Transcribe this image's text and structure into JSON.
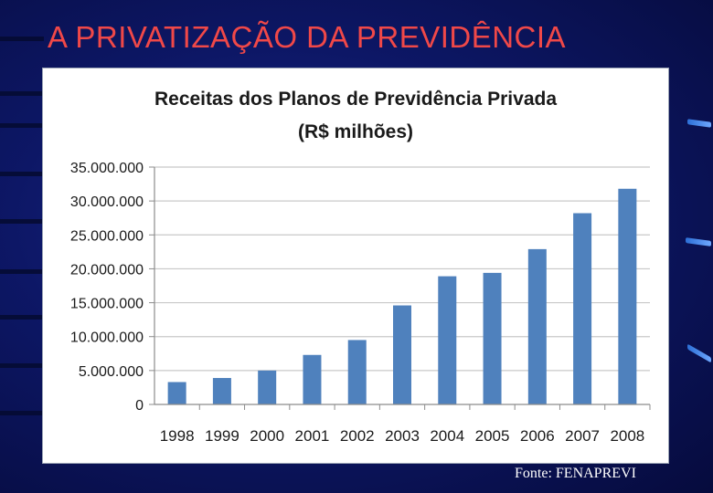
{
  "slide": {
    "title": "A PRIVATIZAÇÃO DA PREVIDÊNCIA",
    "source": "Fonte: FENAPREVI"
  },
  "colors": {
    "title": "#f04848",
    "bar": "#4f81bd",
    "grid": "#c8c8c8",
    "background": "#0d1766"
  },
  "chart_data": {
    "type": "bar",
    "title": "Receitas dos Planos de Previdência Privada",
    "subtitle": "(R$ milhões)",
    "xlabel": "",
    "ylabel": "",
    "categories": [
      "1998",
      "1999",
      "2000",
      "2001",
      "2002",
      "2003",
      "2004",
      "2005",
      "2006",
      "2007",
      "2008"
    ],
    "values": [
      3300000,
      3900000,
      5000000,
      7300000,
      9500000,
      14600000,
      18900000,
      19400000,
      22900000,
      28200000,
      31800000
    ],
    "ylim": [
      0,
      35000000
    ],
    "yticks": [
      0,
      5000000,
      10000000,
      15000000,
      20000000,
      25000000,
      30000000,
      35000000
    ],
    "ytick_labels": [
      "0",
      "5.000.000",
      "10.000.000",
      "15.000.000",
      "20.000.000",
      "25.000.000",
      "30.000.000",
      "35.000.000"
    ],
    "grid": true,
    "legend": "none"
  }
}
